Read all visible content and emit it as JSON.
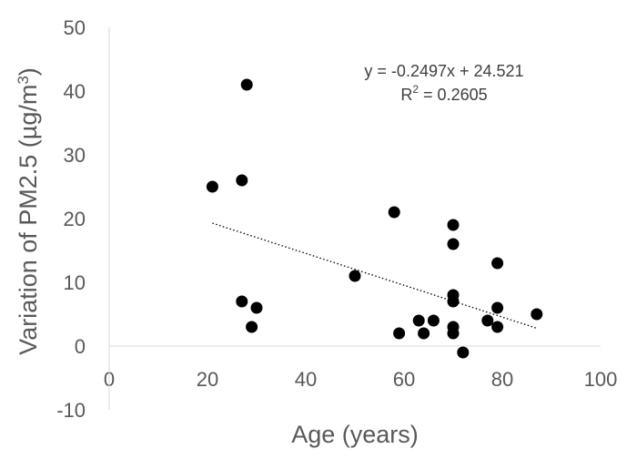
{
  "chart_data": {
    "type": "scatter",
    "title": "",
    "xlabel": "Age (years)",
    "ylabel_parts": [
      "Variation of PM2.5 (µg/m",
      "3",
      ")"
    ],
    "xlim": [
      0,
      100
    ],
    "ylim": [
      -10,
      50
    ],
    "x_ticks": [
      0,
      20,
      40,
      60,
      80,
      100
    ],
    "y_ticks": [
      -10,
      0,
      10,
      20,
      30,
      40,
      50
    ],
    "grid": false,
    "legend": "none",
    "series": [
      {
        "points": [
          {
            "x": 21,
            "y": 25
          },
          {
            "x": 27,
            "y": 26
          },
          {
            "x": 28,
            "y": 41
          },
          {
            "x": 27,
            "y": 7
          },
          {
            "x": 29,
            "y": 3
          },
          {
            "x": 30,
            "y": 6
          },
          {
            "x": 50,
            "y": 11
          },
          {
            "x": 58,
            "y": 21
          },
          {
            "x": 59,
            "y": 2
          },
          {
            "x": 63,
            "y": 4
          },
          {
            "x": 64,
            "y": 2
          },
          {
            "x": 66,
            "y": 4
          },
          {
            "x": 70,
            "y": 19
          },
          {
            "x": 70,
            "y": 16
          },
          {
            "x": 70,
            "y": 8
          },
          {
            "x": 70,
            "y": 7
          },
          {
            "x": 70,
            "y": 3
          },
          {
            "x": 70,
            "y": 2
          },
          {
            "x": 72,
            "y": -1
          },
          {
            "x": 77,
            "y": 4
          },
          {
            "x": 79,
            "y": 13
          },
          {
            "x": 79,
            "y": 6
          },
          {
            "x": 79,
            "y": 3
          },
          {
            "x": 87,
            "y": 5
          }
        ],
        "color": "#000000"
      }
    ],
    "trendline": {
      "slope": -0.2497,
      "intercept": 24.521,
      "x_range": [
        21,
        87
      ],
      "style": "dotted",
      "equation_label": "y = -0.2497x + 24.521",
      "r2_label_parts": [
        "R",
        "2",
        " = 0.2605"
      ]
    }
  }
}
